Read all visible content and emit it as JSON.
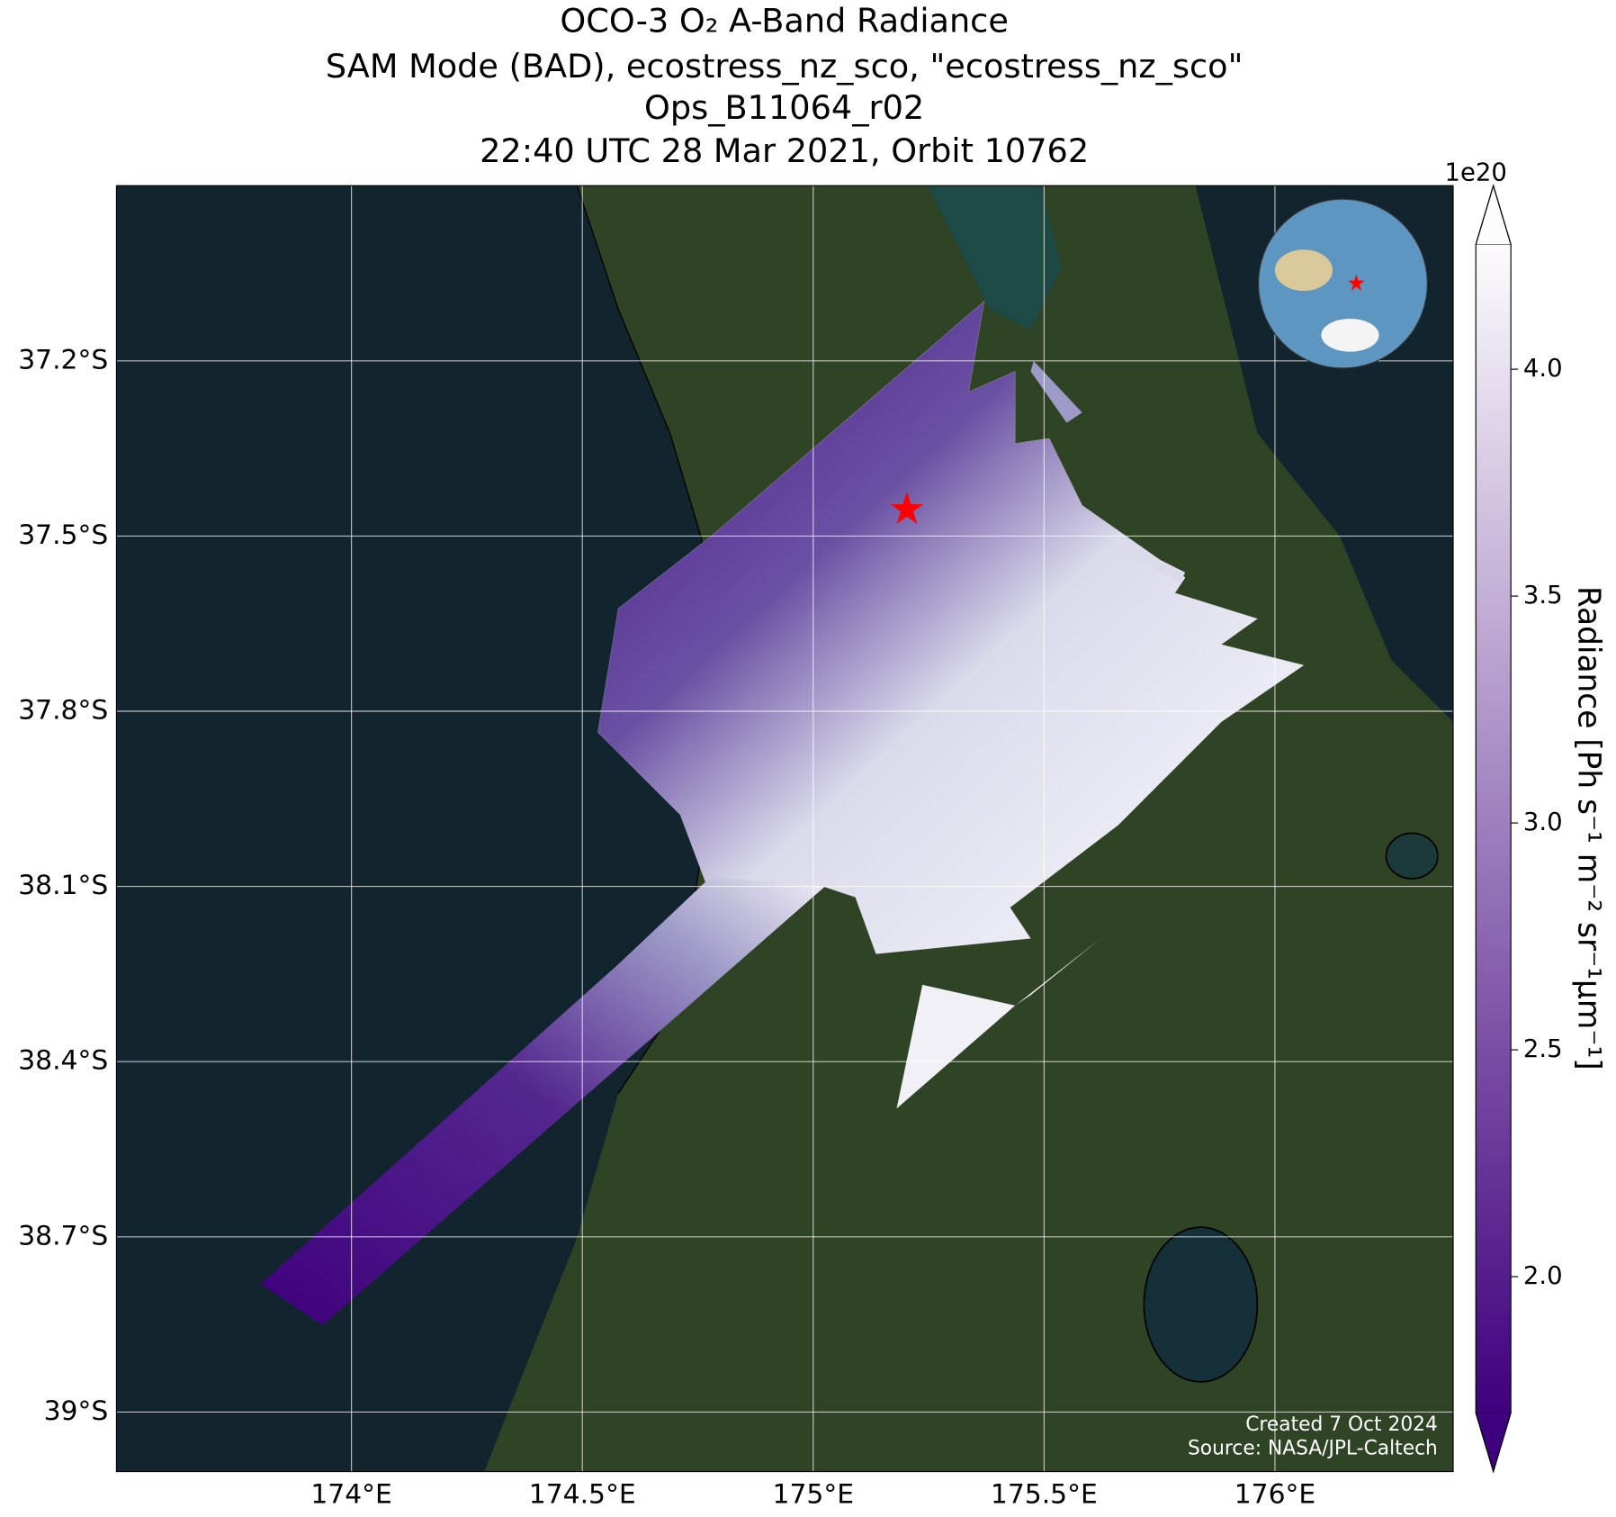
{
  "title": [
    "OCO-3 O₂ A-Band Radiance",
    "SAM Mode (BAD), ecostress_nz_sco, \"ecostress_nz_sco\"",
    "Ops_B11064_r02",
    "22:40 UTC 28 Mar 2021, Orbit 10762"
  ],
  "map": {
    "xlim": [
      173.491,
      176.386
    ],
    "ylim": [
      -39.102,
      -36.9
    ],
    "grid": true,
    "xticks": [
      {
        "value": 174,
        "label": "174°E"
      },
      {
        "value": 174.5,
        "label": "174.5°E"
      },
      {
        "value": 175,
        "label": "175°E"
      },
      {
        "value": 175.5,
        "label": "175.5°E"
      },
      {
        "value": 176,
        "label": "176°E"
      }
    ],
    "yticks": [
      {
        "value": -37.2,
        "label": "37.2°S"
      },
      {
        "value": -37.5,
        "label": "37.5°S"
      },
      {
        "value": -37.8,
        "label": "37.8°S"
      },
      {
        "value": -38.1,
        "label": "38.1°S"
      },
      {
        "value": -38.4,
        "label": "38.4°S"
      },
      {
        "value": -38.7,
        "label": "38.7°S"
      },
      {
        "value": -39,
        "label": "39°S"
      }
    ]
  },
  "colorbar": {
    "label": "Radiance [Ph s⁻¹ m⁻² sr⁻¹μm⁻¹]",
    "multiplier": "1e20",
    "clim": [
      1.7,
      4.275
    ],
    "ticks": [
      {
        "value": 2,
        "label": "2.0"
      },
      {
        "value": 2.5,
        "label": "2.5"
      },
      {
        "value": 3,
        "label": "3.0"
      },
      {
        "value": 3.5,
        "label": "3.5"
      },
      {
        "value": 4,
        "label": "4.0"
      }
    ],
    "colors": [
      "#3f007d",
      "#fcfbfd"
    ]
  },
  "credits": [
    "Created 7 Oct 2024",
    "Source: NASA/JPL-Caltech"
  ]
}
